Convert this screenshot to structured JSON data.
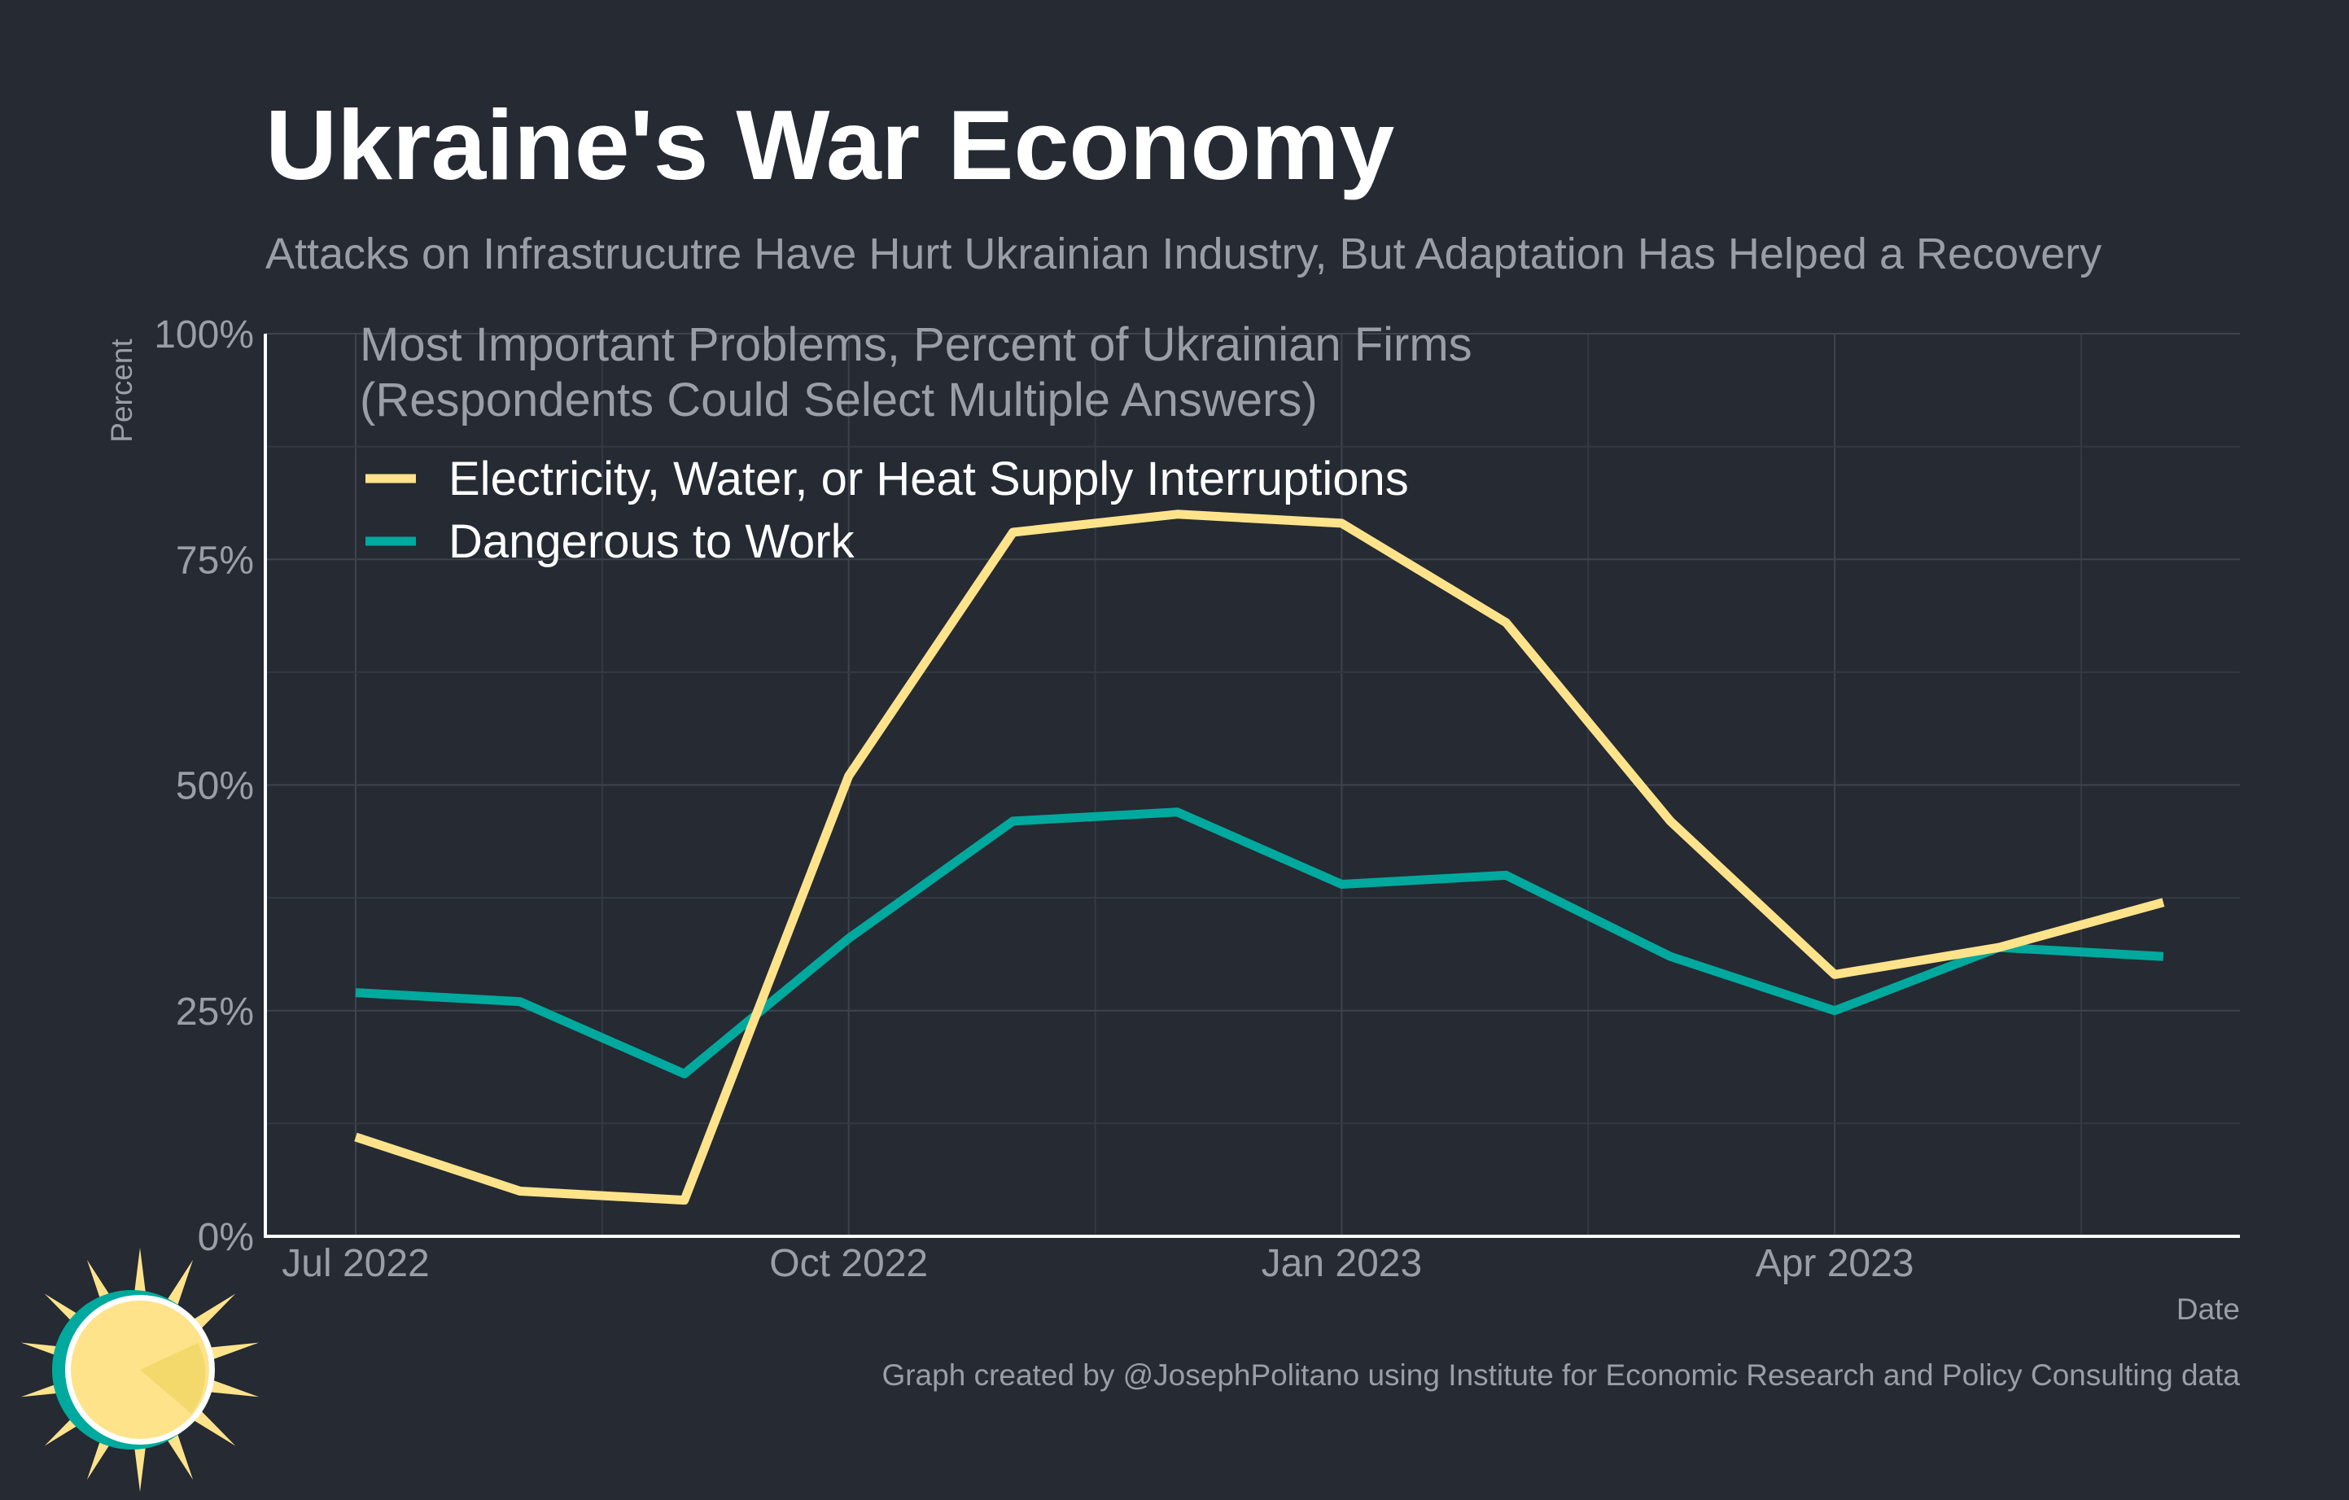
{
  "header": {
    "title": "Ukraine's War Economy",
    "subtitle": "Attacks on Infrastrucutre Have Hurt Ukrainian Industry, But Adaptation Has Helped a Recovery"
  },
  "chart_data": {
    "type": "line",
    "title": "Most Important Problems, Percent of Ukrainian Firms",
    "title_line2": "(Respondents Could Select Multiple Answers)",
    "xlabel": "Date",
    "ylabel": "Percent",
    "x": [
      "2022-07",
      "2022-08",
      "2022-09",
      "2022-10",
      "2022-11",
      "2022-12",
      "2023-01",
      "2023-02",
      "2023-03",
      "2023-04",
      "2023-05",
      "2023-06"
    ],
    "x_ticks": [
      {
        "value": "2022-07",
        "label": "Jul 2022"
      },
      {
        "value": "2022-10",
        "label": "Oct 2022"
      },
      {
        "value": "2023-01",
        "label": "Jan 2023"
      },
      {
        "value": "2023-04",
        "label": "Apr 2023"
      }
    ],
    "y_ticks": [
      {
        "value": 0,
        "label": "0%"
      },
      {
        "value": 25,
        "label": "25%"
      },
      {
        "value": 50,
        "label": "50%"
      },
      {
        "value": 75,
        "label": "75%"
      },
      {
        "value": 100,
        "label": "100%"
      }
    ],
    "ylim": [
      0,
      100
    ],
    "grid": true,
    "legend_position": "top-left",
    "series": [
      {
        "name": "Electricity, Water, or Heat Supply Interruptions",
        "color": "#fee38b",
        "values": [
          11,
          5,
          4,
          51,
          78,
          80,
          79,
          68,
          46,
          29,
          32,
          37
        ]
      },
      {
        "name": "Dangerous to Work",
        "color": "#00a99d",
        "values": [
          27,
          26,
          18,
          33,
          46,
          47,
          39,
          40,
          31,
          25,
          32,
          31
        ]
      }
    ]
  },
  "footer": {
    "caption": "Graph created by @JosephPolitano using Institute for Economic Research and Policy Consulting data"
  },
  "logo": {
    "icon": "sun-logo-icon"
  }
}
